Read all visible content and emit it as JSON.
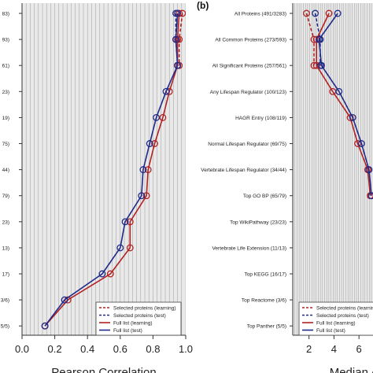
{
  "chart_data": [
    {
      "type": "line",
      "panel_label": "",
      "xlabel": "Pearson Correlation",
      "ylabel": "",
      "xlim": [
        0.0,
        1.0
      ],
      "x_ticks": [
        "0.0",
        "0.2",
        "0.4",
        "0.6",
        "0.8",
        "1.0"
      ],
      "y_categories": [
        "83)",
        "93)",
        "61)",
        "23)",
        "19)",
        "75)",
        "44)",
        "79)",
        "23)",
        "13)",
        "17)",
        "3/6)",
        "5/5)"
      ],
      "grid": "vertical",
      "series": [
        {
          "name": "",
          "color": "#b22222",
          "style": "dashed",
          "marker": "circle",
          "values": [
            0.98,
            0.96,
            0.96,
            null,
            null,
            null,
            null,
            null,
            null,
            null,
            null,
            null,
            null
          ]
        },
        {
          "name": "",
          "color": "#1f2a8a",
          "style": "dashed",
          "marker": "circle",
          "values": [
            0.94,
            0.94,
            0.95,
            null,
            null,
            null,
            null,
            null,
            null,
            null,
            null,
            null,
            null
          ]
        },
        {
          "name": "",
          "color": "#b22222",
          "style": "solid",
          "marker": "circle",
          "values": [
            0.96,
            0.95,
            0.95,
            0.9,
            0.86,
            0.81,
            0.77,
            0.76,
            0.66,
            0.66,
            0.54,
            0.28,
            0.14
          ]
        },
        {
          "name": "",
          "color": "#1f2a8a",
          "style": "solid",
          "marker": "circle",
          "values": [
            0.95,
            0.94,
            0.95,
            0.88,
            0.82,
            0.78,
            0.74,
            0.73,
            0.63,
            0.6,
            0.49,
            0.26,
            0.14
          ]
        }
      ],
      "legend": [
        "Selected proteins (learning)",
        "Selected proteins (test)",
        "Full list (learning)",
        "Full list (test)"
      ],
      "legend_position": "bottom-right"
    },
    {
      "type": "line",
      "panel_label": "(b)",
      "xlabel": "Median A",
      "ylabel": "",
      "xlim": [
        0.7,
        7.5
      ],
      "x_ticks": [
        "2",
        "4",
        "6"
      ],
      "y_categories": [
        "All Proteins (491/3283)",
        "All Common Proteins (273/593)",
        "All Significant Proteins (257/561)",
        "Any Lifespan Regulator (100/123)",
        "HAGR Entry (108/119)",
        "Normal Lifespan Regulator (69/75)",
        "Vertebrate Lifespan Regulator (34/44)",
        "Top GO BP (65/79)",
        "Top WikiPathway (23/23)",
        "Vertebrate Life Extension (11/13)",
        "Top KEGG (16/17)",
        "Top Reactome (3/6)",
        "Top Panther (5/5)"
      ],
      "grid": "vertical",
      "series": [
        {
          "name": "",
          "color": "#b22222",
          "style": "dashed",
          "marker": "circle",
          "values": [
            1.8,
            2.4,
            2.4,
            null,
            null,
            null,
            null,
            null,
            null,
            null,
            null,
            null,
            null
          ]
        },
        {
          "name": "",
          "color": "#1f2a8a",
          "style": "dashed",
          "marker": "circle",
          "values": [
            2.5,
            2.9,
            2.9,
            null,
            null,
            null,
            null,
            null,
            null,
            null,
            null,
            null,
            null
          ]
        },
        {
          "name": "",
          "color": "#b22222",
          "style": "solid",
          "marker": "circle",
          "values": [
            3.6,
            2.6,
            2.6,
            3.9,
            5.3,
            5.9,
            6.7,
            6.9,
            null,
            null,
            null,
            null,
            null
          ]
        },
        {
          "name": "",
          "color": "#1f2a8a",
          "style": "solid",
          "marker": "circle",
          "values": [
            4.3,
            2.8,
            3.0,
            4.4,
            5.5,
            6.2,
            6.8,
            7.0,
            null,
            null,
            null,
            null,
            null
          ]
        }
      ],
      "legend": [
        "Selected proteins (learning)",
        "Selected proteins (test)",
        "Full list (learning)",
        "Full list (test)"
      ],
      "legend_position": "bottom-right"
    }
  ]
}
